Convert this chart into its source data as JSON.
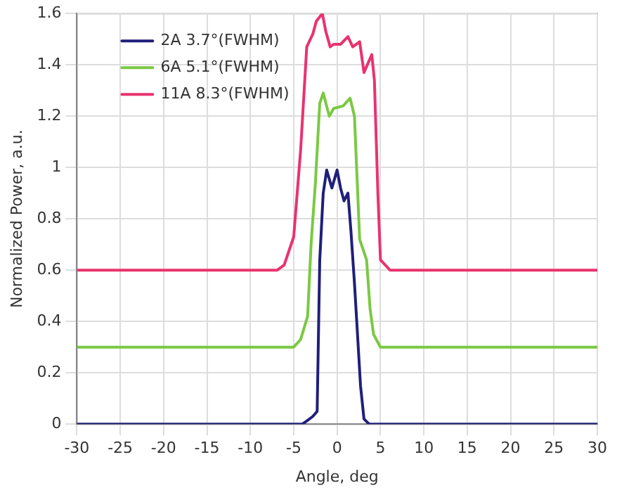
{
  "chart_data": {
    "type": "line",
    "xlabel": "Angle, deg",
    "ylabel": "Normalized Power, a.u.",
    "xlim": [
      -30,
      30
    ],
    "ylim": [
      0,
      1.6
    ],
    "xticks": [
      -30,
      -25,
      -20,
      -15,
      -10,
      -5,
      0,
      5,
      10,
      15,
      20,
      25,
      30
    ],
    "yticks": [
      0,
      0.2,
      0.4,
      0.6,
      0.8,
      1,
      1.2,
      1.4,
      1.6
    ],
    "grid": true,
    "legend": "top left",
    "marker": "none",
    "line_style": "solid",
    "series": [
      {
        "name": "2A 3.7°(FWHM)",
        "color": "#1f1f7a",
        "x": [
          -30,
          -4,
          -3.6,
          -2.8,
          -2.3,
          -2,
          -1.6,
          -1.2,
          -0.6,
          0,
          0.4,
          0.8,
          1.25,
          1.6,
          2,
          2.3,
          2.7,
          3.1,
          3.7,
          30
        ],
        "values": [
          0,
          0,
          0.01,
          0.03,
          0.05,
          0.64,
          0.9,
          0.99,
          0.92,
          0.99,
          0.92,
          0.87,
          0.9,
          0.75,
          0.55,
          0.38,
          0.15,
          0.02,
          0,
          0
        ]
      },
      {
        "name": "6A 5.1°(FWHM)",
        "color": "#7ac943",
        "x": [
          -30,
          -5,
          -4.2,
          -3.4,
          -3,
          -2.5,
          -2,
          -1.6,
          -0.9,
          -0.4,
          0.7,
          1.5,
          2,
          2.6,
          3.4,
          3.8,
          4.2,
          5,
          30
        ],
        "values": [
          0.3,
          0.3,
          0.33,
          0.42,
          0.7,
          0.94,
          1.25,
          1.29,
          1.2,
          1.23,
          1.24,
          1.27,
          1.2,
          0.72,
          0.64,
          0.45,
          0.35,
          0.3,
          0.3
        ]
      },
      {
        "name": "11A 8.3°(FWHM)",
        "color": "#e8336e",
        "x": [
          -30,
          -6.9,
          -6.1,
          -5,
          -4.2,
          -3.5,
          -2.8,
          -2.4,
          -1.7,
          -1.3,
          -0.8,
          -0.4,
          0.4,
          1.25,
          1.8,
          2.6,
          3.1,
          4,
          4.3,
          4.7,
          5,
          6.1,
          30
        ],
        "values": [
          0.6,
          0.6,
          0.62,
          0.73,
          1.07,
          1.47,
          1.52,
          1.57,
          1.6,
          1.53,
          1.47,
          1.48,
          1.48,
          1.51,
          1.47,
          1.49,
          1.37,
          1.44,
          1.34,
          0.9,
          0.64,
          0.6,
          0.6
        ]
      }
    ]
  }
}
